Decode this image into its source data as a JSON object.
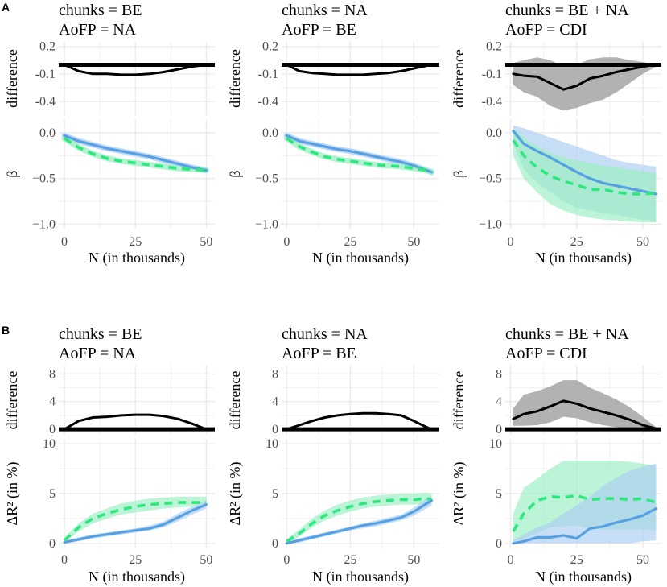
{
  "figure": {
    "panel_labels": [
      "A",
      "B"
    ],
    "colors": {
      "blue": "#56a0e3",
      "green": "#2ee87f",
      "blue_ribbon": "#aed0f2",
      "green_ribbon": "#9ef0c4",
      "diff_ribbon": "#a5a5a5",
      "grid": "#ebebeb",
      "line": "#000000"
    }
  },
  "chart_data": [
    {
      "id": "A1",
      "type": "line",
      "strip": [
        "chunks = BE",
        "AoFP = NA"
      ],
      "xlabel": "N (in thousands)",
      "xlim": [
        -2,
        53
      ],
      "xticks": [
        0,
        25,
        50
      ],
      "difference": {
        "ylabel": "difference",
        "ylim": [
          -0.55,
          0.25
        ],
        "yticks": [
          0.2,
          -0.1,
          -0.4
        ],
        "ytick_labels": [
          "0.2",
          "-0.1",
          "-0.4"
        ],
        "x": [
          0,
          5,
          10,
          15,
          20,
          25,
          30,
          35,
          40,
          45,
          50
        ],
        "values": [
          0,
          -0.07,
          -0.1,
          -0.1,
          -0.11,
          -0.11,
          -0.1,
          -0.08,
          -0.05,
          -0.02,
          0
        ]
      },
      "beta": {
        "ylabel": "β",
        "ylim": [
          -1.05,
          0.15
        ],
        "yticks": [
          0,
          -0.5,
          -1
        ],
        "ytick_labels": [
          "0.0",
          "−0.5",
          "−1.0"
        ],
        "x": [
          0,
          5,
          10,
          15,
          20,
          25,
          30,
          35,
          40,
          45,
          50
        ],
        "series": [
          {
            "name": "blue-solid",
            "color": "blue",
            "dash": false,
            "values": [
              -0.03,
              -0.09,
              -0.13,
              -0.17,
              -0.2,
              -0.23,
              -0.26,
              -0.3,
              -0.34,
              -0.38,
              -0.41
            ]
          },
          {
            "name": "green-dashed",
            "color": "green",
            "dash": true,
            "values": [
              -0.06,
              -0.16,
              -0.23,
              -0.28,
              -0.31,
              -0.33,
              -0.35,
              -0.37,
              -0.39,
              -0.4,
              -0.41
            ]
          }
        ]
      }
    },
    {
      "id": "A2",
      "type": "line",
      "strip": [
        "chunks = NA",
        "AoFP = BE"
      ],
      "xlabel": "N (in thousands)",
      "xlim": [
        -2,
        60
      ],
      "xticks": [
        0,
        25,
        50
      ],
      "difference": {
        "ylabel": "difference",
        "ylim": [
          -0.55,
          0.25
        ],
        "yticks": [
          0.2,
          -0.1,
          -0.4
        ],
        "ytick_labels": [
          "0.2",
          "-0.1",
          "-0.4"
        ],
        "x": [
          0,
          5,
          10,
          15,
          20,
          25,
          30,
          35,
          40,
          45,
          50,
          55,
          57
        ],
        "values": [
          0,
          -0.07,
          -0.09,
          -0.1,
          -0.11,
          -0.11,
          -0.11,
          -0.1,
          -0.09,
          -0.07,
          -0.04,
          -0.01,
          0
        ]
      },
      "beta": {
        "ylabel": "β",
        "ylim": [
          -1.05,
          0.15
        ],
        "yticks": [
          0,
          -0.5,
          -1
        ],
        "ytick_labels": [
          "0.0",
          "−0.5",
          "−1.0"
        ],
        "x": [
          0,
          5,
          10,
          15,
          20,
          25,
          30,
          35,
          40,
          45,
          50,
          55,
          57
        ],
        "series": [
          {
            "name": "blue-solid",
            "color": "blue",
            "dash": false,
            "values": [
              -0.03,
              -0.09,
              -0.12,
              -0.15,
              -0.18,
              -0.2,
              -0.23,
              -0.26,
              -0.29,
              -0.32,
              -0.36,
              -0.41,
              -0.43
            ]
          },
          {
            "name": "green-dashed",
            "color": "green",
            "dash": true,
            "values": [
              -0.06,
              -0.15,
              -0.21,
              -0.26,
              -0.29,
              -0.31,
              -0.33,
              -0.35,
              -0.36,
              -0.37,
              -0.39,
              -0.41,
              -0.43
            ]
          }
        ]
      }
    },
    {
      "id": "A3",
      "type": "line",
      "strip": [
        "chunks = BE + NA",
        "AoFP = CDI"
      ],
      "xlabel": "N (in thousands)",
      "xlim": [
        -2,
        57
      ],
      "xticks": [
        0,
        25,
        50
      ],
      "difference": {
        "ylabel": "difference",
        "ylim": [
          -0.55,
          0.25
        ],
        "yticks": [
          0.2,
          -0.1,
          -0.4
        ],
        "ytick_labels": [
          "0.2",
          "-0.1",
          "-0.4"
        ],
        "x": [
          1,
          5,
          10,
          15,
          20,
          25,
          30,
          35,
          40,
          45,
          50,
          55
        ],
        "values": [
          -0.1,
          -0.12,
          -0.13,
          -0.2,
          -0.27,
          -0.23,
          -0.15,
          -0.12,
          -0.08,
          -0.05,
          -0.02,
          0
        ],
        "lower": [
          -0.22,
          -0.3,
          -0.35,
          -0.45,
          -0.5,
          -0.47,
          -0.42,
          -0.38,
          -0.3,
          -0.2,
          -0.1,
          -0.02
        ],
        "upper": [
          0.02,
          0.05,
          0.08,
          0.05,
          -0.02,
          0,
          0.06,
          0.08,
          0.08,
          0.05,
          0.03,
          0
        ]
      },
      "beta": {
        "ylabel": "β",
        "ylim": [
          -1.05,
          0.15
        ],
        "yticks": [
          0,
          -0.5,
          -1
        ],
        "ytick_labels": [
          "0.0",
          "−0.5",
          "−1.0"
        ],
        "x": [
          1,
          5,
          10,
          15,
          20,
          25,
          30,
          35,
          40,
          45,
          50,
          55
        ],
        "series": [
          {
            "name": "blue-solid",
            "color": "blue",
            "dash": false,
            "values": [
              0.02,
              -0.12,
              -0.2,
              -0.27,
              -0.35,
              -0.43,
              -0.5,
              -0.55,
              -0.58,
              -0.61,
              -0.64,
              -0.67
            ],
            "lower": [
              -0.12,
              -0.4,
              -0.55,
              -0.65,
              -0.75,
              -0.82,
              -0.85,
              -0.88,
              -0.9,
              -0.93,
              -0.95,
              -0.97
            ],
            "upper": [
              0.08,
              0.05,
              0.0,
              -0.05,
              -0.1,
              -0.15,
              -0.2,
              -0.25,
              -0.3,
              -0.33,
              -0.35,
              -0.37
            ]
          },
          {
            "name": "green-dashed",
            "color": "green",
            "dash": true,
            "values": [
              -0.08,
              -0.25,
              -0.38,
              -0.47,
              -0.53,
              -0.57,
              -0.62,
              -0.62,
              -0.65,
              -0.67,
              -0.67,
              -0.66
            ],
            "lower": [
              -0.25,
              -0.5,
              -0.65,
              -0.78,
              -0.85,
              -0.9,
              -0.93,
              -0.95,
              -0.96,
              -0.97,
              -0.98,
              -0.98
            ],
            "upper": [
              0.05,
              -0.05,
              -0.15,
              -0.22,
              -0.27,
              -0.3,
              -0.33,
              -0.36,
              -0.38,
              -0.4,
              -0.42,
              -0.44
            ]
          }
        ]
      }
    },
    {
      "id": "B1",
      "type": "line",
      "strip": [
        "chunks = BE",
        "AoFP = NA"
      ],
      "xlabel": "N (in thousands)",
      "xlim": [
        -2,
        53
      ],
      "xticks": [
        0,
        25,
        50
      ],
      "difference": {
        "ylabel": "difference",
        "ylim": [
          -0.8,
          9.2
        ],
        "yticks": [
          0,
          4,
          8
        ],
        "ytick_labels": [
          "0",
          "4",
          "8"
        ],
        "x": [
          0,
          5,
          10,
          15,
          20,
          25,
          30,
          35,
          40,
          45,
          50
        ],
        "values": [
          0,
          1.2,
          1.7,
          1.8,
          2.0,
          2.1,
          2.1,
          1.9,
          1.5,
          0.8,
          0
        ]
      },
      "delta_r2": {
        "ylabel": "ΔR² (in %)",
        "ylim": [
          -0.5,
          10.5
        ],
        "yticks": [
          0,
          5,
          10
        ],
        "ytick_labels": [
          "0",
          "5",
          "10"
        ],
        "x": [
          0,
          5,
          10,
          15,
          20,
          25,
          30,
          35,
          40,
          45,
          50
        ],
        "series": [
          {
            "name": "green-dashed",
            "color": "green",
            "dash": true,
            "values": [
              0.3,
              1.6,
              2.5,
              3.0,
              3.4,
              3.7,
              3.9,
              4.0,
              4.1,
              4.1,
              4.1
            ],
            "lower": [
              0.1,
              1.2,
              2.0,
              2.5,
              2.9,
              3.1,
              3.3,
              3.5,
              3.6,
              3.7,
              3.8
            ],
            "upper": [
              0.6,
              2.0,
              3.0,
              3.5,
              4.0,
              4.3,
              4.5,
              4.6,
              4.7,
              4.7,
              4.7
            ]
          },
          {
            "name": "blue-solid",
            "color": "blue",
            "dash": false,
            "values": [
              0.1,
              0.4,
              0.7,
              0.9,
              1.1,
              1.3,
              1.5,
              1.9,
              2.6,
              3.3,
              3.9
            ],
            "lower": [
              0.0,
              0.2,
              0.5,
              0.7,
              0.9,
              1.1,
              1.3,
              1.6,
              2.2,
              2.9,
              3.5
            ],
            "upper": [
              0.3,
              0.6,
              0.9,
              1.1,
              1.3,
              1.5,
              1.8,
              2.2,
              3.0,
              3.7,
              4.3
            ]
          }
        ]
      }
    },
    {
      "id": "B2",
      "type": "line",
      "strip": [
        "chunks = NA",
        "AoFP = BE"
      ],
      "xlabel": "N (in thousands)",
      "xlim": [
        -2,
        60
      ],
      "xticks": [
        0,
        25,
        50
      ],
      "difference": {
        "ylabel": "difference",
        "ylim": [
          -0.8,
          9.2
        ],
        "yticks": [
          0,
          4,
          8
        ],
        "ytick_labels": [
          "0",
          "4",
          "8"
        ],
        "x": [
          0,
          5,
          10,
          15,
          20,
          25,
          30,
          35,
          40,
          45,
          50,
          55,
          57
        ],
        "values": [
          0,
          0.6,
          1.2,
          1.7,
          2.0,
          2.2,
          2.3,
          2.3,
          2.2,
          2.0,
          1.2,
          0.3,
          0
        ]
      },
      "delta_r2": {
        "ylabel": "ΔR² (in %)",
        "ylim": [
          -0.5,
          10.5
        ],
        "yticks": [
          0,
          5,
          10
        ],
        "ytick_labels": [
          "0",
          "5",
          "10"
        ],
        "x": [
          0,
          5,
          10,
          15,
          20,
          25,
          30,
          35,
          40,
          45,
          50,
          55,
          57
        ],
        "series": [
          {
            "name": "green-dashed",
            "color": "green",
            "dash": true,
            "values": [
              0.2,
              1.0,
              2.0,
              2.8,
              3.3,
              3.7,
              4.0,
              4.2,
              4.3,
              4.4,
              4.4,
              4.5,
              4.4
            ],
            "lower": [
              0.0,
              0.7,
              1.6,
              2.3,
              2.8,
              3.2,
              3.5,
              3.7,
              3.8,
              3.9,
              3.9,
              4.0,
              3.9
            ],
            "upper": [
              0.4,
              1.4,
              2.5,
              3.3,
              3.9,
              4.3,
              4.6,
              4.8,
              4.9,
              5.0,
              5.0,
              5.1,
              5.0
            ]
          },
          {
            "name": "blue-solid",
            "color": "blue",
            "dash": false,
            "values": [
              0.0,
              0.3,
              0.6,
              0.9,
              1.2,
              1.5,
              1.8,
              2.0,
              2.3,
              2.6,
              3.2,
              4.0,
              4.3
            ],
            "lower": [
              0.0,
              0.1,
              0.4,
              0.7,
              1.0,
              1.3,
              1.5,
              1.7,
              2.0,
              2.3,
              2.8,
              3.5,
              3.8
            ],
            "upper": [
              0.2,
              0.5,
              0.8,
              1.1,
              1.4,
              1.7,
              2.0,
              2.3,
              2.6,
              2.9,
              3.6,
              4.5,
              4.8
            ]
          }
        ]
      }
    },
    {
      "id": "B3",
      "type": "line",
      "strip": [
        "chunks = BE + NA",
        "AoFP = CDI"
      ],
      "xlabel": "N (in thousands)",
      "xlim": [
        -2,
        57
      ],
      "xticks": [
        0,
        25,
        50
      ],
      "difference": {
        "ylabel": "difference",
        "ylim": [
          -0.8,
          9.2
        ],
        "yticks": [
          0,
          4,
          8
        ],
        "ytick_labels": [
          "0",
          "4",
          "8"
        ],
        "x": [
          1,
          5,
          10,
          15,
          20,
          25,
          30,
          35,
          40,
          45,
          50,
          55
        ],
        "values": [
          1.5,
          2.2,
          2.6,
          3.3,
          4.1,
          3.7,
          3.0,
          2.5,
          2.0,
          1.4,
          0.6,
          0.1
        ],
        "lower": [
          0.5,
          0.5,
          0.6,
          1.0,
          1.8,
          1.6,
          1.0,
          0.6,
          0.3,
          0.1,
          0.0,
          0.0
        ],
        "upper": [
          3.0,
          5.0,
          5.5,
          6.2,
          7.1,
          7.1,
          6.0,
          5.2,
          4.3,
          3.2,
          1.8,
          0.3
        ]
      },
      "delta_r2": {
        "ylabel": "ΔR² (in %)",
        "ylim": [
          -0.5,
          10.5
        ],
        "yticks": [
          0,
          5,
          10
        ],
        "ytick_labels": [
          "0",
          "5",
          "10"
        ],
        "x": [
          1,
          5,
          10,
          15,
          20,
          25,
          30,
          35,
          40,
          45,
          50,
          55
        ],
        "series": [
          {
            "name": "green-dashed",
            "color": "green",
            "dash": true,
            "values": [
              1.2,
              3.0,
              4.3,
              4.7,
              4.6,
              4.8,
              4.4,
              4.5,
              4.5,
              4.4,
              4.5,
              4.1
            ],
            "lower": [
              0.2,
              0.5,
              1.0,
              1.6,
              1.7,
              1.8,
              1.5,
              1.4,
              1.4,
              1.4,
              1.4,
              1.3
            ],
            "upper": [
              3.0,
              5.6,
              6.5,
              7.5,
              8.3,
              8.3,
              8.3,
              8.3,
              8.3,
              8.2,
              8.0,
              7.8
            ]
          },
          {
            "name": "blue-solid",
            "color": "blue",
            "dash": false,
            "values": [
              0.0,
              0.2,
              0.6,
              0.6,
              0.8,
              0.5,
              1.5,
              1.7,
              2.1,
              2.4,
              2.8,
              3.5
            ],
            "lower": [
              0.0,
              0.0,
              0.0,
              0.0,
              0.0,
              0.0,
              0.0,
              0.0,
              0.0,
              0.0,
              0.2,
              0.3
            ],
            "upper": [
              0.3,
              0.9,
              1.6,
              2.1,
              3.0,
              3.8,
              4.7,
              5.8,
              6.6,
              7.3,
              7.7,
              8.0
            ]
          }
        ]
      }
    }
  ]
}
